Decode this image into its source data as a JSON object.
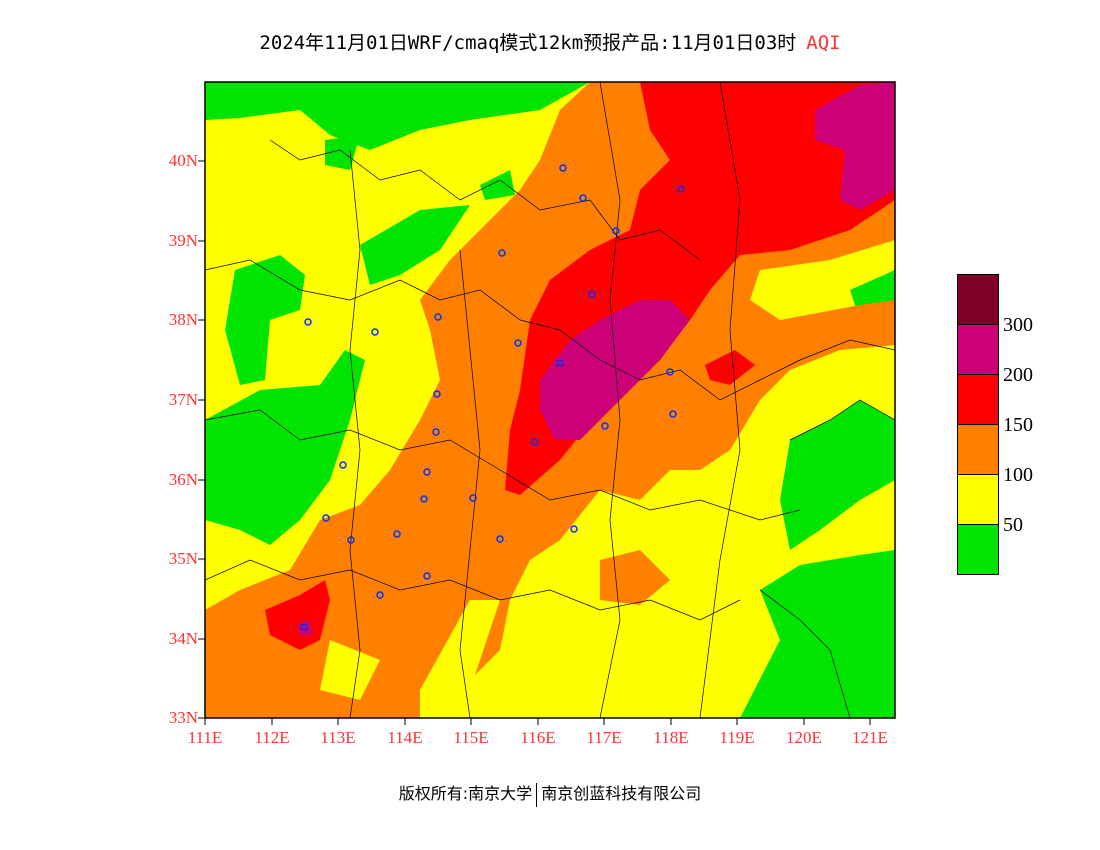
{
  "title": {
    "main": "2024年11月01日WRF/cmaq模式12km预报产品:11月01日03时",
    "variable": "AQI"
  },
  "axes": {
    "lat_labels": [
      "40N",
      "39N",
      "38N",
      "37N",
      "36N",
      "35N",
      "34N",
      "33N"
    ],
    "lon_labels": [
      "111E",
      "112E",
      "113E",
      "114E",
      "115E",
      "116E",
      "117E",
      "118E",
      "119E",
      "120E",
      "121E"
    ]
  },
  "legend": {
    "colors": [
      "#7f0027",
      "#cc0077",
      "#ff0000",
      "#ff8000",
      "#ffff00",
      "#00e400"
    ],
    "labels": [
      "300",
      "200",
      "150",
      "100",
      "50"
    ]
  },
  "footer": {
    "left": "版权所有:南京大学",
    "right": "南京创蓝科技有限公司"
  }
}
